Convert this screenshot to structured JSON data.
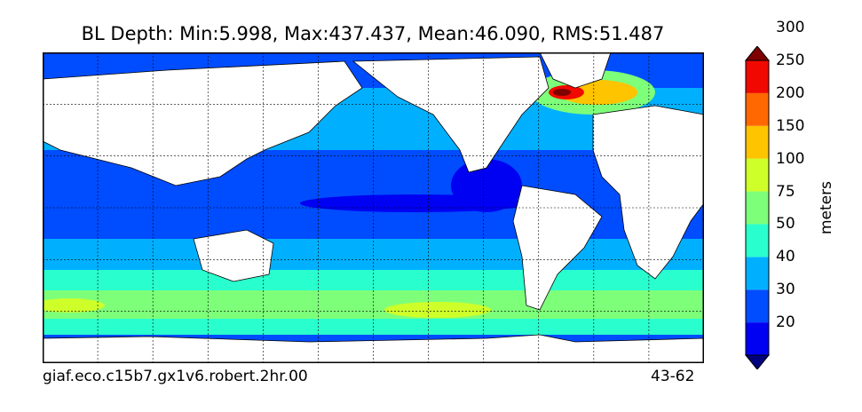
{
  "title": "BL Depth: Min:5.998, Max:437.437, Mean:46.090, RMS:51.487",
  "footer": {
    "case_name": "giaf.eco.c15b7.gx1v6.robert.2hr.00",
    "years": "43-62"
  },
  "chart_data": {
    "type": "heatmap",
    "variable": "BL Depth",
    "stats": {
      "min": 5.998,
      "max": 437.437,
      "mean": 46.09,
      "rms": 51.487
    },
    "colorbar": {
      "label": "meters",
      "levels": [
        20,
        30,
        40,
        50,
        75,
        100,
        150,
        200,
        250,
        300
      ],
      "colors": [
        "#00007f",
        "#0000f2",
        "#004cff",
        "#00b0ff",
        "#29ffce",
        "#7dff7a",
        "#ceff29",
        "#ffc400",
        "#ff6800",
        "#f10800",
        "#7f0000"
      ],
      "extend": "both"
    },
    "grid": true
  }
}
